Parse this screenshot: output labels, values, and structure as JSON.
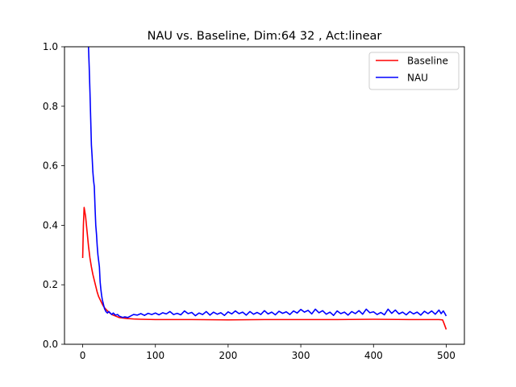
{
  "chart_data": {
    "type": "line",
    "title": "NAU vs. Baseline, Dim:64 32 , Act:linear",
    "xlabel": "",
    "ylabel": "",
    "xlim": [
      -25,
      525
    ],
    "ylim": [
      0,
      1.0
    ],
    "xticks": [
      0,
      100,
      200,
      300,
      400,
      500
    ],
    "yticks": [
      0.0,
      0.2,
      0.4,
      0.6,
      0.8,
      1.0
    ],
    "xtick_labels": [
      "0",
      "100",
      "200",
      "300",
      "400",
      "500"
    ],
    "ytick_labels": [
      "0.0",
      "0.2",
      "0.4",
      "0.6",
      "0.8",
      "1.0"
    ],
    "legend_position": "top-right",
    "grid": false,
    "series": [
      {
        "name": "Baseline",
        "color": "#ff0000",
        "points": [
          [
            0,
            0.29
          ],
          [
            1,
            0.4
          ],
          [
            2,
            0.46
          ],
          [
            4,
            0.43
          ],
          [
            6,
            0.38
          ],
          [
            8,
            0.33
          ],
          [
            10,
            0.29
          ],
          [
            12,
            0.26
          ],
          [
            14,
            0.235
          ],
          [
            16,
            0.215
          ],
          [
            18,
            0.195
          ],
          [
            20,
            0.175
          ],
          [
            22,
            0.16
          ],
          [
            25,
            0.145
          ],
          [
            28,
            0.13
          ],
          [
            31,
            0.12
          ],
          [
            35,
            0.11
          ],
          [
            40,
            0.1
          ],
          [
            45,
            0.095
          ],
          [
            50,
            0.09
          ],
          [
            60,
            0.087
          ],
          [
            70,
            0.085
          ],
          [
            80,
            0.084
          ],
          [
            100,
            0.083
          ],
          [
            150,
            0.083
          ],
          [
            200,
            0.082
          ],
          [
            250,
            0.083
          ],
          [
            300,
            0.083
          ],
          [
            350,
            0.083
          ],
          [
            400,
            0.084
          ],
          [
            450,
            0.083
          ],
          [
            490,
            0.083
          ],
          [
            495,
            0.082
          ],
          [
            497,
            0.07
          ],
          [
            500,
            0.05
          ]
        ]
      },
      {
        "name": "NAU",
        "color": "#0000ff",
        "points": [
          [
            8,
            1.0
          ],
          [
            9,
            0.93
          ],
          [
            10,
            0.85
          ],
          [
            11,
            0.76
          ],
          [
            12,
            0.67
          ],
          [
            13,
            0.63
          ],
          [
            14,
            0.58
          ],
          [
            15,
            0.55
          ],
          [
            16,
            0.53
          ],
          [
            17,
            0.46
          ],
          [
            18,
            0.4
          ],
          [
            19,
            0.37
          ],
          [
            20,
            0.33
          ],
          [
            21,
            0.3
          ],
          [
            22,
            0.28
          ],
          [
            23,
            0.26
          ],
          [
            24,
            0.21
          ],
          [
            25,
            0.185
          ],
          [
            26,
            0.165
          ],
          [
            27,
            0.15
          ],
          [
            28,
            0.14
          ],
          [
            29,
            0.13
          ],
          [
            30,
            0.12
          ],
          [
            32,
            0.11
          ],
          [
            34,
            0.105
          ],
          [
            36,
            0.11
          ],
          [
            38,
            0.105
          ],
          [
            40,
            0.1
          ],
          [
            42,
            0.105
          ],
          [
            45,
            0.098
          ],
          [
            48,
            0.1
          ],
          [
            50,
            0.095
          ],
          [
            52,
            0.093
          ],
          [
            55,
            0.09
          ],
          [
            58,
            0.092
          ],
          [
            62,
            0.09
          ],
          [
            66,
            0.095
          ],
          [
            70,
            0.1
          ],
          [
            75,
            0.098
          ],
          [
            80,
            0.103
          ],
          [
            85,
            0.097
          ],
          [
            90,
            0.104
          ],
          [
            95,
            0.1
          ],
          [
            100,
            0.105
          ],
          [
            105,
            0.099
          ],
          [
            110,
            0.106
          ],
          [
            115,
            0.102
          ],
          [
            120,
            0.11
          ],
          [
            125,
            0.1
          ],
          [
            130,
            0.104
          ],
          [
            135,
            0.099
          ],
          [
            140,
            0.112
          ],
          [
            145,
            0.103
          ],
          [
            150,
            0.107
          ],
          [
            155,
            0.096
          ],
          [
            160,
            0.105
          ],
          [
            165,
            0.1
          ],
          [
            170,
            0.11
          ],
          [
            175,
            0.098
          ],
          [
            180,
            0.108
          ],
          [
            185,
            0.101
          ],
          [
            190,
            0.106
          ],
          [
            195,
            0.097
          ],
          [
            200,
            0.109
          ],
          [
            205,
            0.102
          ],
          [
            210,
            0.112
          ],
          [
            215,
            0.103
          ],
          [
            220,
            0.108
          ],
          [
            225,
            0.098
          ],
          [
            230,
            0.11
          ],
          [
            235,
            0.101
          ],
          [
            240,
            0.107
          ],
          [
            245,
            0.1
          ],
          [
            250,
            0.113
          ],
          [
            255,
            0.102
          ],
          [
            260,
            0.108
          ],
          [
            265,
            0.099
          ],
          [
            270,
            0.111
          ],
          [
            275,
            0.104
          ],
          [
            280,
            0.109
          ],
          [
            285,
            0.1
          ],
          [
            290,
            0.112
          ],
          [
            295,
            0.105
          ],
          [
            300,
            0.117
          ],
          [
            305,
            0.108
          ],
          [
            310,
            0.114
          ],
          [
            315,
            0.102
          ],
          [
            320,
            0.118
          ],
          [
            325,
            0.106
          ],
          [
            330,
            0.113
          ],
          [
            335,
            0.101
          ],
          [
            340,
            0.108
          ],
          [
            345,
            0.097
          ],
          [
            350,
            0.112
          ],
          [
            355,
            0.103
          ],
          [
            360,
            0.108
          ],
          [
            365,
            0.098
          ],
          [
            370,
            0.11
          ],
          [
            375,
            0.103
          ],
          [
            380,
            0.113
          ],
          [
            385,
            0.101
          ],
          [
            390,
            0.118
          ],
          [
            395,
            0.106
          ],
          [
            400,
            0.109
          ],
          [
            405,
            0.1
          ],
          [
            410,
            0.107
          ],
          [
            415,
            0.099
          ],
          [
            420,
            0.118
          ],
          [
            425,
            0.104
          ],
          [
            430,
            0.115
          ],
          [
            435,
            0.102
          ],
          [
            440,
            0.108
          ],
          [
            445,
            0.099
          ],
          [
            450,
            0.11
          ],
          [
            455,
            0.102
          ],
          [
            460,
            0.108
          ],
          [
            465,
            0.098
          ],
          [
            470,
            0.111
          ],
          [
            475,
            0.103
          ],
          [
            480,
            0.112
          ],
          [
            485,
            0.101
          ],
          [
            490,
            0.115
          ],
          [
            493,
            0.103
          ],
          [
            496,
            0.112
          ],
          [
            498,
            0.104
          ],
          [
            500,
            0.095
          ]
        ]
      }
    ]
  }
}
